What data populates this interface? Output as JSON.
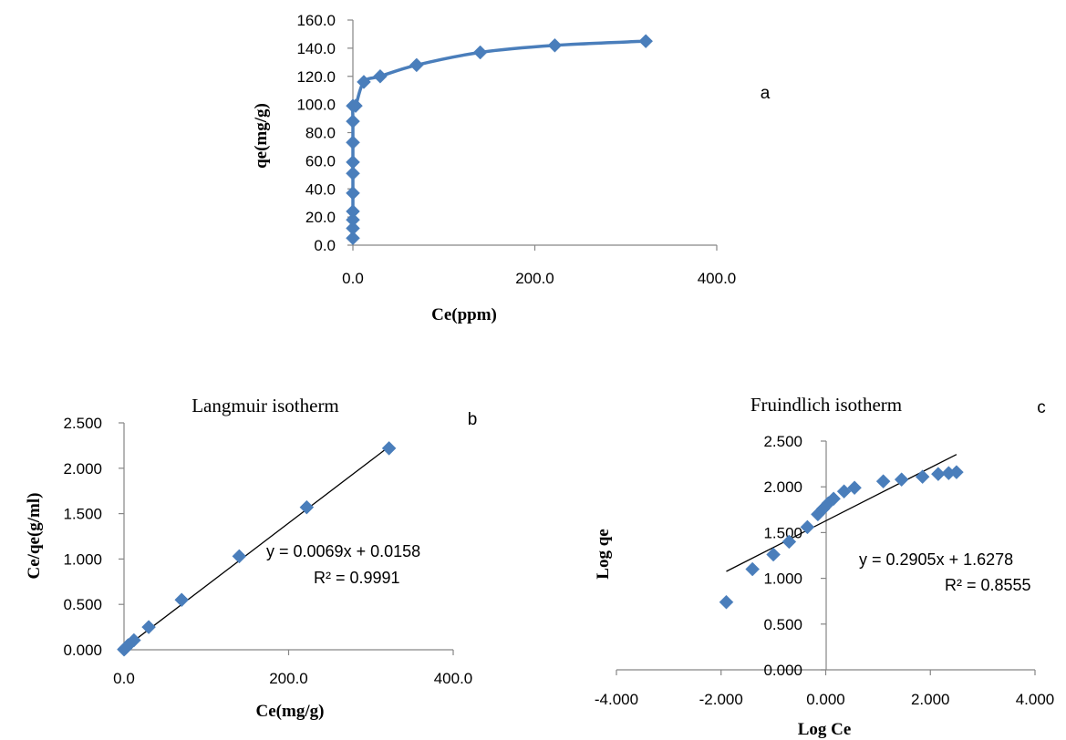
{
  "colors": {
    "marker": "#4a7ebb",
    "curve": "#4a7ebb",
    "trendline": "#000000",
    "axis": "#868686"
  },
  "chart_data": [
    {
      "id": "a",
      "type": "line",
      "panel_label": "a",
      "title": "",
      "xlabel": "Ce(ppm)",
      "ylabel": "qe(mg/g)",
      "xlim": [
        0,
        400
      ],
      "ylim": [
        0,
        160
      ],
      "xticks": [
        "0.0",
        "200.0",
        "400.0"
      ],
      "yticks": [
        "0.0",
        "20.0",
        "40.0",
        "60.0",
        "80.0",
        "100.0",
        "120.0",
        "140.0",
        "160.0"
      ],
      "marker": "diamond",
      "smooth": true,
      "series": [
        {
          "x": [
            0,
            0,
            0,
            0,
            0,
            0,
            0,
            0,
            0,
            0,
            3,
            12,
            30,
            70,
            140,
            222,
            322
          ],
          "y": [
            5,
            12,
            18,
            24,
            37,
            51,
            59,
            73,
            88,
            99,
            99,
            116,
            120,
            128,
            137,
            142,
            145
          ]
        }
      ]
    },
    {
      "id": "b",
      "type": "scatter",
      "panel_label": "b",
      "title": "Langmuir isotherm",
      "xlabel": "Ce(mg/g)",
      "ylabel": "Ce/qe(g/ml)",
      "xlim": [
        0,
        400
      ],
      "ylim": [
        0,
        2.5
      ],
      "xticks": [
        "0.0",
        "200.0",
        "400.0"
      ],
      "yticks": [
        "0.000",
        "0.500",
        "1.000",
        "1.500",
        "2.000",
        "2.500"
      ],
      "marker": "diamond",
      "series": [
        {
          "x": [
            0,
            0.5,
            1,
            2,
            3,
            5,
            12,
            30,
            70,
            140,
            222,
            322
          ],
          "y": [
            0.003,
            0.008,
            0.012,
            0.02,
            0.03,
            0.05,
            0.105,
            0.25,
            0.55,
            1.03,
            1.57,
            2.22
          ]
        }
      ],
      "trendline": {
        "slope": 0.0069,
        "intercept": 0.0158,
        "x_range": [
          0,
          322
        ]
      },
      "annotation": {
        "equation": "y = 0.0069x + 0.0158",
        "r2": "R² = 0.9991"
      }
    },
    {
      "id": "c",
      "type": "scatter",
      "panel_label": "c",
      "title": "Fruindlich isotherm",
      "xlabel": "Log Ce",
      "ylabel": "Log qe",
      "xlim": [
        -4,
        4
      ],
      "ylim": [
        0,
        2.5
      ],
      "xticks": [
        "-4.000",
        "-2.000",
        "0.000",
        "2.000",
        "4.000"
      ],
      "yticks": [
        "0.000",
        "0.500",
        "1.000",
        "1.500",
        "2.000",
        "2.500"
      ],
      "marker": "diamond",
      "series": [
        {
          "x": [
            -1.9,
            -1.4,
            -1.0,
            -0.7,
            -0.35,
            -0.15,
            -0.05,
            0.05,
            0.15,
            0.35,
            0.55,
            1.1,
            1.45,
            1.85,
            2.15,
            2.35,
            2.5
          ],
          "y": [
            0.74,
            1.1,
            1.26,
            1.4,
            1.56,
            1.7,
            1.76,
            1.82,
            1.87,
            1.95,
            1.99,
            2.06,
            2.08,
            2.11,
            2.14,
            2.15,
            2.16
          ]
        }
      ],
      "trendline": {
        "slope": 0.2905,
        "intercept": 1.6278,
        "x_range": [
          -1.9,
          2.5
        ]
      },
      "annotation": {
        "equation": "y = 0.2905x + 1.6278",
        "r2": "R² = 0.8555"
      }
    }
  ]
}
